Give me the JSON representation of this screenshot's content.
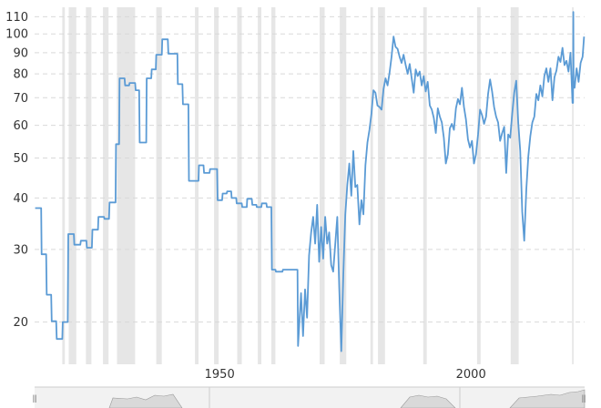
{
  "chart_data": {
    "type": "line",
    "title": "",
    "xlabel": "",
    "ylabel": "",
    "yscale": "log",
    "ylim": [
      15.8,
      116
    ],
    "xlim": [
      1913.2,
      2022.6
    ],
    "y_ticks": [
      20,
      30,
      40,
      50,
      60,
      70,
      80,
      90,
      100,
      110
    ],
    "x_ticks": [
      1950,
      2000
    ],
    "grid": "horizontal-dashed",
    "colors": {
      "line": "#5b9bd5",
      "recession": "#e6e6e6",
      "grid": "#d9d9d9",
      "navigator": "#d9d9d9"
    },
    "recession_bands": [
      [
        1918.7,
        1919.2
      ],
      [
        1920.0,
        1921.5
      ],
      [
        1923.4,
        1924.5
      ],
      [
        1926.8,
        1927.9
      ],
      [
        1929.6,
        1933.2
      ],
      [
        1937.4,
        1938.5
      ],
      [
        1945.1,
        1945.8
      ],
      [
        1948.9,
        1949.8
      ],
      [
        1953.5,
        1954.4
      ],
      [
        1957.6,
        1958.3
      ],
      [
        1960.3,
        1961.1
      ],
      [
        1969.9,
        1970.9
      ],
      [
        1973.9,
        1975.2
      ],
      [
        1980.0,
        1980.5
      ],
      [
        1981.5,
        1982.9
      ],
      [
        1990.5,
        1991.2
      ],
      [
        2001.2,
        2001.9
      ],
      [
        2007.9,
        2009.5
      ],
      [
        2020.1,
        2020.4
      ]
    ],
    "series": [
      {
        "x": [
          1913.3,
          1914.5,
          1914.6,
          1915.5,
          1915.6,
          1916.5,
          1916.6,
          1917.5,
          1917.6,
          1918.7,
          1918.8,
          1919.8,
          1919.9,
          1921.0,
          1921.1,
          1922.3,
          1922.4,
          1923.5,
          1923.6,
          1924.6,
          1924.7,
          1925.8,
          1925.9,
          1927.0,
          1927.1,
          1928.0,
          1928.1,
          1929.3,
          1929.4,
          1930.0,
          1930.1,
          1931.1,
          1931.2,
          1932.0,
          1932.1,
          1933.2,
          1933.3,
          1934.0,
          1934.1,
          1935.4,
          1935.5,
          1936.4,
          1936.5,
          1937.3,
          1937.4,
          1938.5,
          1938.6,
          1939.7,
          1939.8,
          1941.6,
          1941.7,
          1942.6,
          1942.7,
          1943.8,
          1943.9,
          1945.8,
          1945.9,
          1946.8,
          1946.9,
          1948.0,
          1948.1,
          1949.5,
          1949.6,
          1950.5,
          1950.6,
          1951.4,
          1951.5,
          1952.3,
          1952.4,
          1953.3,
          1953.4,
          1954.4,
          1954.5,
          1955.4,
          1955.5,
          1956.4,
          1956.5,
          1957.3,
          1957.4,
          1958.3,
          1958.4,
          1959.3,
          1959.4,
          1960.3,
          1960.4,
          1961.1,
          1961.2,
          1962.5,
          1962.6,
          1965.5,
          1965.6,
          1966.2,
          1966.6,
          1967.0,
          1967.4,
          1967.8,
          1968.2,
          1968.6,
          1969.0,
          1969.4,
          1969.8,
          1970.2,
          1970.6,
          1971.0,
          1971.4,
          1971.8,
          1972.2,
          1972.6,
          1973.0,
          1973.4,
          1973.8,
          1974.2,
          1974.6,
          1975.0,
          1975.4,
          1975.8,
          1976.2,
          1976.6,
          1977.0,
          1977.4,
          1977.8,
          1978.2,
          1978.6,
          1979.0,
          1979.4,
          1979.8,
          1980.2,
          1980.6,
          1981.0,
          1981.4,
          1981.8,
          1982.2,
          1982.6,
          1983.0,
          1983.4,
          1983.8,
          1984.2,
          1984.6,
          1985.0,
          1985.4,
          1985.8,
          1986.2,
          1986.6,
          1987.0,
          1987.4,
          1987.8,
          1988.2,
          1988.6,
          1989.0,
          1989.4,
          1989.8,
          1990.2,
          1990.6,
          1991.0,
          1991.4,
          1991.8,
          1992.2,
          1992.6,
          1993.0,
          1993.4,
          1993.8,
          1994.2,
          1994.6,
          1995.0,
          1995.4,
          1995.8,
          1996.2,
          1996.6,
          1997.0,
          1997.4,
          1997.8,
          1998.2,
          1998.6,
          1999.0,
          1999.4,
          1999.8,
          2000.2,
          2000.6,
          2001.0,
          2001.4,
          2001.8,
          2002.2,
          2002.6,
          2003.0,
          2003.4,
          2003.8,
          2004.2,
          2004.6,
          2005.0,
          2005.4,
          2005.8,
          2006.2,
          2006.6,
          2007.0,
          2007.4,
          2007.8,
          2008.2,
          2008.6,
          2009.0,
          2009.4,
          2009.8,
          2010.2,
          2010.6,
          2011.0,
          2011.4,
          2011.8,
          2012.2,
          2012.6,
          2013.0,
          2013.4,
          2013.8,
          2014.2,
          2014.6,
          2015.0,
          2015.4,
          2015.8,
          2016.2,
          2016.6,
          2017.0,
          2017.4,
          2017.8,
          2018.2,
          2018.6,
          2019.0,
          2019.4,
          2019.8,
          2020.2,
          2020.6,
          2021.0,
          2021.4,
          2021.8,
          2022.2,
          2022.5
        ],
        "y": [
          37.8,
          37.8,
          29.2,
          29.2,
          23.3,
          23.3,
          20.1,
          20.1,
          18.2,
          18.2,
          20.0,
          20.0,
          32.7,
          32.7,
          30.8,
          30.8,
          31.5,
          31.5,
          30.3,
          30.3,
          33.5,
          33.5,
          36.0,
          36.0,
          35.6,
          35.6,
          39.0,
          39.0,
          54.0,
          54.0,
          78.0,
          78.0,
          75.0,
          75.0,
          76.0,
          76.0,
          73.0,
          73.0,
          54.5,
          54.5,
          78.0,
          78.0,
          82.0,
          82.0,
          89.0,
          89.0,
          97.0,
          97.0,
          89.5,
          89.5,
          75.5,
          75.5,
          67.5,
          67.5,
          44.0,
          44.0,
          48.0,
          48.0,
          46.0,
          46.0,
          47.0,
          47.0,
          39.5,
          39.5,
          41.0,
          41.0,
          41.5,
          41.5,
          40.0,
          40.0,
          38.8,
          38.8,
          38.0,
          38.0,
          39.8,
          39.8,
          38.5,
          38.5,
          38.0,
          38.0,
          38.8,
          38.8,
          38.0,
          38.0,
          26.8,
          26.8,
          26.5,
          26.5,
          26.8,
          26.8,
          17.5,
          23.5,
          18.5,
          24.0,
          20.5,
          29.0,
          33.0,
          36.0,
          31.0,
          38.5,
          28.0,
          34.0,
          28.5,
          36.0,
          31.0,
          33.0,
          27.5,
          26.5,
          31.0,
          36.0,
          24.0,
          17.0,
          26.0,
          36.5,
          43.0,
          48.5,
          40.5,
          52.0,
          42.5,
          43.0,
          34.5,
          39.5,
          36.5,
          48.0,
          54.5,
          58.5,
          64.0,
          73.0,
          72.0,
          67.0,
          66.5,
          65.5,
          73.5,
          78.0,
          75.0,
          80.5,
          88.0,
          98.5,
          93.0,
          92.0,
          88.0,
          85.0,
          89.0,
          84.0,
          80.0,
          84.5,
          78.0,
          72.0,
          82.0,
          79.0,
          81.0,
          75.0,
          79.0,
          72.5,
          76.5,
          67.0,
          65.5,
          62.5,
          57.5,
          66.0,
          63.0,
          61.0,
          56.0,
          48.5,
          51.0,
          59.0,
          60.5,
          58.5,
          66.0,
          69.5,
          67.5,
          74.0,
          66.5,
          62.0,
          55.5,
          53.0,
          55.0,
          48.5,
          51.0,
          57.0,
          65.5,
          63.5,
          60.5,
          63.0,
          71.5,
          77.5,
          72.5,
          66.5,
          63.0,
          61.0,
          55.0,
          57.5,
          59.5,
          46.0,
          57.0,
          56.0,
          64.0,
          72.0,
          77.0,
          61.0,
          52.0,
          37.0,
          31.5,
          42.0,
          50.5,
          56.5,
          61.0,
          63.0,
          71.5,
          69.0,
          75.0,
          70.5,
          79.0,
          82.5,
          76.5,
          82.5,
          69.0,
          78.5,
          81.5,
          88.0,
          85.5,
          92.5,
          84.0,
          86.0,
          81.0,
          90.0,
          68.0,
          74.0,
          82.5,
          76.5,
          85.0,
          88.0,
          98.5
        ],
        "spike": {
          "x": 2020.35,
          "y": 113.0
        },
        "color": "#5b9bd5"
      }
    ]
  },
  "navigator": {
    "handle_left": "⦀",
    "handle_right": "⦀"
  }
}
